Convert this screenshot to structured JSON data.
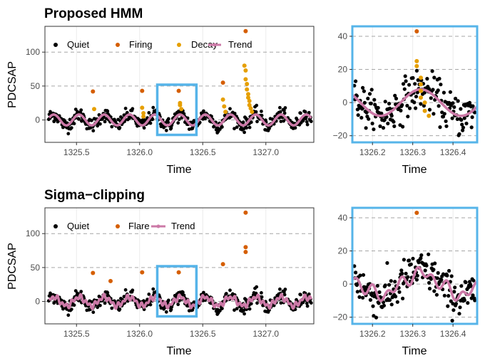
{
  "colors": {
    "quiet": "#000000",
    "firing": "#D55E00",
    "decay": "#E69F00",
    "trend": "#CC79A7",
    "highlight": "#56B4E9",
    "grid": "#ebebeb",
    "hline": "#a6a6a6"
  },
  "chart_data": [
    {
      "id": "hmm-main",
      "type": "scatter",
      "title": "Proposed HMM",
      "xlabel": "Time",
      "ylabel": "PDCSAP",
      "xlim": [
        1325.25,
        1327.38
      ],
      "ylim": [
        -33,
        138
      ],
      "xticks": [
        1325.5,
        1326.0,
        1326.5,
        1327.0
      ],
      "xtick_labels": [
        "1325.5",
        "1326.0",
        "1326.5",
        "1327.0"
      ],
      "yticks": [
        0,
        50,
        100
      ],
      "ytick_labels": [
        "0",
        "50",
        "100"
      ],
      "hlines": [
        0,
        50,
        100
      ],
      "legend": [
        "Quiet",
        "Firing",
        "Decay",
        "Trend"
      ],
      "trend_model": "sine",
      "trend_amplitude": 8,
      "trend_period_days": 0.2,
      "firing": [
        [
          1325.63,
          42
        ],
        [
          1326.02,
          43
        ],
        [
          1326.31,
          43
        ],
        [
          1326.66,
          55
        ],
        [
          1326.84,
          131
        ]
      ],
      "decay": [
        [
          1325.64,
          16
        ],
        [
          1326.02,
          18
        ],
        [
          1326.03,
          10
        ],
        [
          1326.03,
          5
        ],
        [
          1326.32,
          25
        ],
        [
          1326.32,
          22
        ],
        [
          1326.33,
          16
        ],
        [
          1326.66,
          30
        ],
        [
          1326.67,
          20
        ],
        [
          1326.68,
          12
        ],
        [
          1326.83,
          80
        ],
        [
          1326.84,
          73
        ],
        [
          1326.84,
          60
        ],
        [
          1326.85,
          53
        ],
        [
          1326.85,
          45
        ],
        [
          1326.86,
          38
        ],
        [
          1326.86,
          33
        ],
        [
          1326.87,
          28
        ],
        [
          1326.87,
          22
        ],
        [
          1326.88,
          17
        ],
        [
          1326.89,
          12
        ]
      ],
      "highlight_box": [
        1326.14,
        1326.45,
        -22,
        52
      ]
    },
    {
      "id": "hmm-zoom",
      "type": "scatter",
      "xlabel": "Time",
      "xlim": [
        1326.15,
        1326.46
      ],
      "ylim": [
        -24,
        46
      ],
      "xticks": [
        1326.2,
        1326.3,
        1326.4
      ],
      "xtick_labels": [
        "1326.2",
        "1326.3",
        "1326.4"
      ],
      "yticks": [
        -20,
        0,
        20,
        40
      ],
      "ytick_labels": [
        "−20",
        "0",
        "20",
        "40"
      ],
      "hlines": [
        -20,
        0,
        20,
        40
      ],
      "trend_model": "sine",
      "trend_amplitude": 8,
      "trend_period_days": 0.2,
      "firing": [
        [
          1326.31,
          43
        ]
      ],
      "decay": [
        [
          1326.31,
          25
        ],
        [
          1326.31,
          22
        ],
        [
          1326.32,
          15
        ],
        [
          1326.32,
          11
        ],
        [
          1326.32,
          7
        ],
        [
          1326.32,
          3
        ],
        [
          1326.33,
          0
        ],
        [
          1326.33,
          -5
        ],
        [
          1326.34,
          -8
        ]
      ],
      "frame": true
    },
    {
      "id": "sigma-main",
      "type": "scatter",
      "title": "Sigma−clipping",
      "xlabel": "Time",
      "ylabel": "PDCSAP",
      "xlim": [
        1325.25,
        1327.38
      ],
      "ylim": [
        -33,
        138
      ],
      "xticks": [
        1325.5,
        1326.0,
        1326.5,
        1327.0
      ],
      "xtick_labels": [
        "1325.5",
        "1326.0",
        "1326.5",
        "1327.0"
      ],
      "yticks": [
        0,
        50,
        100
      ],
      "ytick_labels": [
        "0",
        "50",
        "100"
      ],
      "hlines": [
        0,
        50,
        100
      ],
      "legend": [
        "Quiet",
        "Flare",
        "Trend"
      ],
      "trend_model": "wiggly",
      "trend_amplitude": 8,
      "trend_period_days": 0.2,
      "flare": [
        [
          1325.63,
          42
        ],
        [
          1325.77,
          30
        ],
        [
          1326.02,
          43
        ],
        [
          1326.31,
          43
        ],
        [
          1326.66,
          55
        ],
        [
          1326.84,
          131
        ],
        [
          1326.84,
          80
        ],
        [
          1326.84,
          73
        ]
      ],
      "highlight_box": [
        1326.14,
        1326.45,
        -22,
        52
      ]
    },
    {
      "id": "sigma-zoom",
      "type": "scatter",
      "xlabel": "Time",
      "xlim": [
        1326.15,
        1326.46
      ],
      "ylim": [
        -24,
        46
      ],
      "xticks": [
        1326.2,
        1326.3,
        1326.4
      ],
      "xtick_labels": [
        "1326.2",
        "1326.3",
        "1326.4"
      ],
      "yticks": [
        -20,
        0,
        20,
        40
      ],
      "ytick_labels": [
        "−20",
        "0",
        "20",
        "40"
      ],
      "hlines": [
        -20,
        0,
        20,
        40
      ],
      "trend_model": "wiggly",
      "trend_amplitude": 8,
      "trend_period_days": 0.2,
      "flare": [
        [
          1326.31,
          43
        ]
      ],
      "frame": true
    }
  ]
}
